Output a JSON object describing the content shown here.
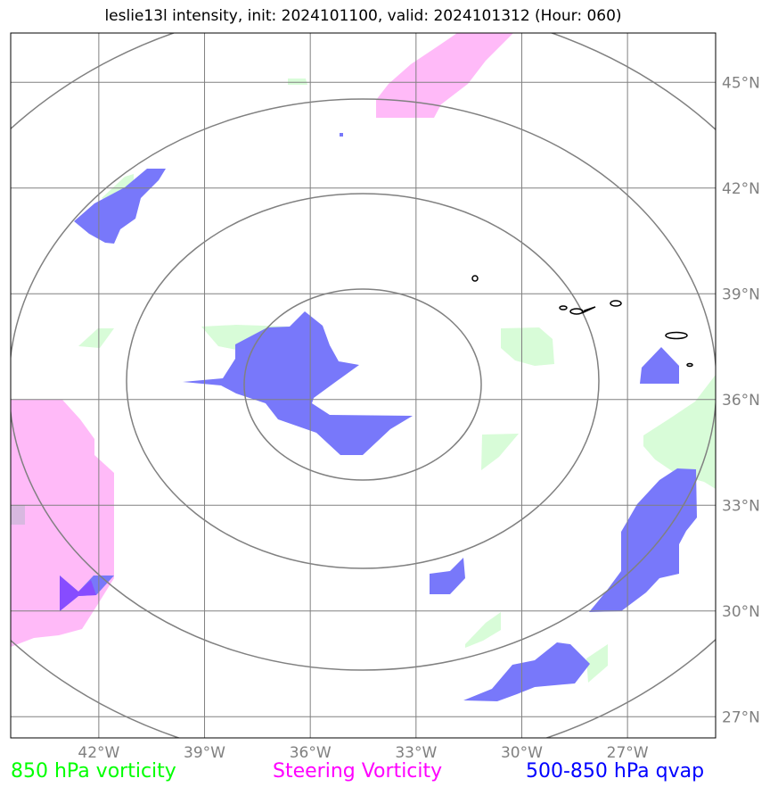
{
  "title": "leslie13l intensity, init: 2024101100, valid: 2024101312 (Hour: 060)",
  "map": {
    "lon_range": [
      -44.5,
      -24.5
    ],
    "lat_range": [
      26.4,
      46.4
    ],
    "lon_ticks": [
      {
        "value": -42,
        "label": "42°W"
      },
      {
        "value": -39,
        "label": "39°W"
      },
      {
        "value": -36,
        "label": "36°W"
      },
      {
        "value": -33,
        "label": "33°W"
      },
      {
        "value": -30,
        "label": "30°W"
      },
      {
        "value": -27,
        "label": "27°W"
      }
    ],
    "lat_ticks": [
      {
        "value": 27,
        "label": "27°N"
      },
      {
        "value": 30,
        "label": "30°N"
      },
      {
        "value": 33,
        "label": "33°N"
      },
      {
        "value": 36,
        "label": "36°N"
      },
      {
        "value": 39,
        "label": "39°N"
      },
      {
        "value": 42,
        "label": "42°N"
      },
      {
        "value": 45,
        "label": "45°N"
      }
    ],
    "colors": {
      "vort850": "#00ff00",
      "steering": "#ff00ff",
      "qvap": "#0000ff",
      "grid": "#808080",
      "rings": "#808080",
      "coast": "#000000"
    }
  },
  "legend": {
    "vort850": {
      "label": "850 hPa vorticity",
      "color": "#00ff00"
    },
    "steering": {
      "label": "Steering Vorticity",
      "color": "#ff00ff"
    },
    "qvap": {
      "label": "500-850 hPa qvap",
      "color": "#0000ff"
    }
  }
}
